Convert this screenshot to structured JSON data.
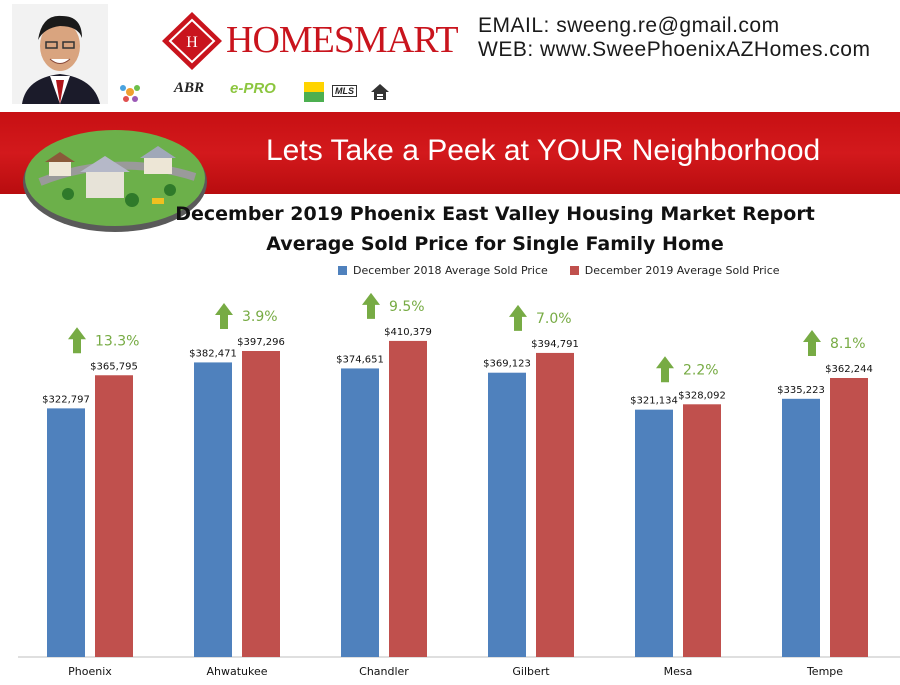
{
  "header": {
    "logo_text": "HOMESMART",
    "email": "EMAIL: sweeng.re@gmail.com",
    "web": "WEB: www.SweePhoenixAZHomes.com",
    "badges": [
      "ABR",
      "e-PRO",
      "MLS"
    ],
    "social_icons": [
      {
        "name": "facebook-icon",
        "glyph": "f",
        "color": "#3b5998"
      },
      {
        "name": "twitter-icon",
        "glyph": "t",
        "color": "#1da1f2"
      },
      {
        "name": "youtube-icon",
        "glyph": "You Tube",
        "color": "#cc181e"
      },
      {
        "name": "linkedin-icon",
        "glyph": "in",
        "color": "#0e76a8"
      }
    ]
  },
  "banner": {
    "title": "Lets Take a Peek at YOUR Neighborhood"
  },
  "chart_data": {
    "type": "bar",
    "title": "December 2019 Phoenix East Valley Housing Market Report",
    "subtitle": "Average Sold Price for Single Family Home",
    "categories": [
      "Phoenix",
      "Ahwatukee",
      "Chandler",
      "Gilbert",
      "Mesa",
      "Tempe"
    ],
    "series": [
      {
        "name": "December 2018 Average Sold Price",
        "color": "#4f81bd",
        "values": [
          322797,
          382471,
          374651,
          369123,
          321134,
          335223
        ],
        "labels": [
          "$322,797",
          "$382,471",
          "$374,651",
          "$369,123",
          "$321,134",
          "$335,223"
        ]
      },
      {
        "name": "December 2019 Average Sold Price",
        "color": "#c0504d",
        "values": [
          365795,
          397296,
          410379,
          394791,
          328092,
          362244
        ],
        "labels": [
          "$365,795",
          "$397,296",
          "$410,379",
          "$394,791",
          "$328,092",
          "$362,244"
        ]
      }
    ],
    "changes": [
      "13.3%",
      "3.9%",
      "9.5%",
      "7.0%",
      "2.2%",
      "8.1%"
    ],
    "change_color": "#77ab44",
    "ylim": [
      0,
      470000
    ],
    "legend_position": "top",
    "grid": false
  }
}
